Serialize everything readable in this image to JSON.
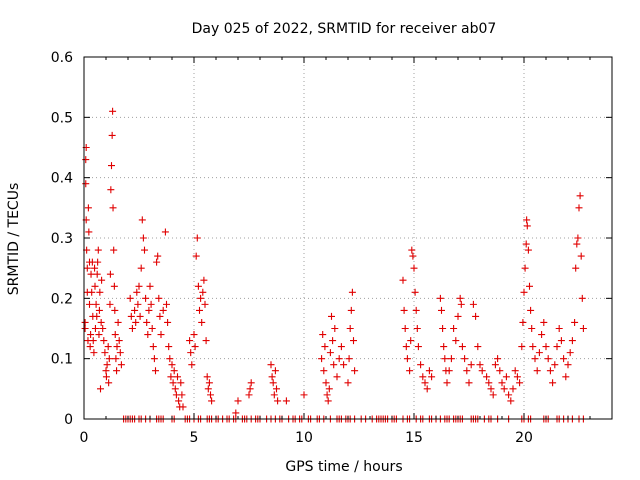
{
  "chart_data": {
    "type": "scatter",
    "title": "Day 025 of 2022, SRMTID for receiver ab07",
    "xlabel": "GPS time / hours",
    "ylabel": "SRMTID / TECUs",
    "xlim": [
      0,
      24
    ],
    "ylim": [
      0,
      0.6
    ],
    "xticks": [
      0,
      5,
      10,
      15,
      20
    ],
    "xtick_labels": [
      "0",
      "5",
      "10",
      "15",
      "20"
    ],
    "yticks": [
      0,
      0.1,
      0.2,
      0.3,
      0.4,
      0.5,
      0.6
    ],
    "ytick_labels": [
      "0",
      "0.1",
      "0.2",
      "0.3",
      "0.4",
      "0.5",
      "0.6"
    ],
    "grid": true,
    "marker": "+",
    "series": [
      {
        "name": "SRMTID",
        "color": "#e00000",
        "points": [
          [
            0.05,
            0.16
          ],
          [
            0.05,
            0.15
          ],
          [
            0.08,
            0.39
          ],
          [
            0.08,
            0.43
          ],
          [
            0.1,
            0.45
          ],
          [
            0.1,
            0.33
          ],
          [
            0.12,
            0.28
          ],
          [
            0.15,
            0.21
          ],
          [
            0.15,
            0.25
          ],
          [
            0.18,
            0.13
          ],
          [
            0.2,
            0.35
          ],
          [
            0.22,
            0.31
          ],
          [
            0.25,
            0.26
          ],
          [
            0.25,
            0.19
          ],
          [
            0.28,
            0.12
          ],
          [
            0.3,
            0.14
          ],
          [
            0.32,
            0.24
          ],
          [
            0.35,
            0.21
          ],
          [
            0.38,
            0.26
          ],
          [
            0.4,
            0.17
          ],
          [
            0.42,
            0.13
          ],
          [
            0.45,
            0.11
          ],
          [
            0.48,
            0.25
          ],
          [
            0.5,
            0.22
          ],
          [
            0.52,
            0.15
          ],
          [
            0.55,
            0.19
          ],
          [
            0.58,
            0.17
          ],
          [
            0.6,
            0.24
          ],
          [
            0.62,
            0.26
          ],
          [
            0.65,
            0.28
          ],
          [
            0.68,
            0.14
          ],
          [
            0.7,
            0.18
          ],
          [
            0.72,
            0.21
          ],
          [
            0.75,
            0.05
          ],
          [
            0.78,
            0.16
          ],
          [
            0.8,
            0.23
          ],
          [
            0.85,
            0.15
          ],
          [
            0.9,
            0.13
          ],
          [
            0.95,
            0.11
          ],
          [
            1.0,
            0.08
          ],
          [
            1.02,
            0.07
          ],
          [
            1.05,
            0.09
          ],
          [
            1.1,
            0.12
          ],
          [
            1.12,
            0.06
          ],
          [
            1.15,
            0.1
          ],
          [
            1.18,
            0.19
          ],
          [
            1.2,
            0.24
          ],
          [
            1.22,
            0.38
          ],
          [
            1.25,
            0.42
          ],
          [
            1.28,
            0.47
          ],
          [
            1.3,
            0.51
          ],
          [
            1.32,
            0.35
          ],
          [
            1.35,
            0.28
          ],
          [
            1.38,
            0.22
          ],
          [
            1.4,
            0.18
          ],
          [
            1.42,
            0.14
          ],
          [
            1.45,
            0.1
          ],
          [
            1.48,
            0.08
          ],
          [
            1.5,
            0.12
          ],
          [
            1.55,
            0.16
          ],
          [
            1.6,
            0.13
          ],
          [
            1.65,
            0.11
          ],
          [
            1.7,
            0.09
          ],
          [
            2.1,
            0.2
          ],
          [
            2.15,
            0.17
          ],
          [
            2.2,
            0.15
          ],
          [
            2.3,
            0.18
          ],
          [
            2.35,
            0.16
          ],
          [
            2.4,
            0.21
          ],
          [
            2.45,
            0.19
          ],
          [
            2.5,
            0.22
          ],
          [
            2.55,
            0.17
          ],
          [
            2.6,
            0.25
          ],
          [
            2.65,
            0.33
          ],
          [
            2.7,
            0.3
          ],
          [
            2.75,
            0.28
          ],
          [
            2.8,
            0.2
          ],
          [
            2.85,
            0.16
          ],
          [
            2.9,
            0.14
          ],
          [
            2.95,
            0.18
          ],
          [
            3.0,
            0.22
          ],
          [
            3.05,
            0.19
          ],
          [
            3.1,
            0.15
          ],
          [
            3.15,
            0.12
          ],
          [
            3.2,
            0.1
          ],
          [
            3.25,
            0.08
          ],
          [
            3.3,
            0.26
          ],
          [
            3.35,
            0.27
          ],
          [
            3.4,
            0.2
          ],
          [
            3.45,
            0.17
          ],
          [
            3.5,
            0.14
          ],
          [
            3.6,
            0.18
          ],
          [
            3.7,
            0.31
          ],
          [
            3.75,
            0.19
          ],
          [
            3.8,
            0.16
          ],
          [
            3.85,
            0.12
          ],
          [
            3.9,
            0.1
          ],
          [
            3.95,
            0.07
          ],
          [
            4.0,
            0.09
          ],
          [
            4.05,
            0.06
          ],
          [
            4.1,
            0.08
          ],
          [
            4.15,
            0.05
          ],
          [
            4.2,
            0.04
          ],
          [
            4.25,
            0.07
          ],
          [
            4.3,
            0.03
          ],
          [
            4.35,
            0.02
          ],
          [
            4.4,
            0.06
          ],
          [
            4.45,
            0.04
          ],
          [
            4.5,
            0.02
          ],
          [
            4.8,
            0.13
          ],
          [
            4.85,
            0.11
          ],
          [
            4.9,
            0.09
          ],
          [
            5.0,
            0.14
          ],
          [
            5.05,
            0.12
          ],
          [
            5.1,
            0.27
          ],
          [
            5.15,
            0.3
          ],
          [
            5.2,
            0.22
          ],
          [
            5.25,
            0.18
          ],
          [
            5.3,
            0.2
          ],
          [
            5.35,
            0.16
          ],
          [
            5.4,
            0.21
          ],
          [
            5.45,
            0.23
          ],
          [
            5.5,
            0.19
          ],
          [
            5.55,
            0.13
          ],
          [
            5.6,
            0.07
          ],
          [
            5.65,
            0.05
          ],
          [
            5.7,
            0.06
          ],
          [
            5.75,
            0.04
          ],
          [
            5.8,
            0.03
          ],
          [
            6.9,
            0.01
          ],
          [
            7.0,
            0.03
          ],
          [
            7.5,
            0.04
          ],
          [
            7.55,
            0.05
          ],
          [
            7.6,
            0.06
          ],
          [
            8.5,
            0.09
          ],
          [
            8.55,
            0.07
          ],
          [
            8.6,
            0.06
          ],
          [
            8.65,
            0.04
          ],
          [
            8.7,
            0.08
          ],
          [
            8.75,
            0.05
          ],
          [
            8.8,
            0.03
          ],
          [
            9.2,
            0.03
          ],
          [
            10.0,
            0.04
          ],
          [
            10.8,
            0.1
          ],
          [
            10.85,
            0.14
          ],
          [
            10.9,
            0.08
          ],
          [
            10.95,
            0.12
          ],
          [
            11.0,
            0.06
          ],
          [
            11.05,
            0.04
          ],
          [
            11.1,
            0.03
          ],
          [
            11.15,
            0.05
          ],
          [
            11.2,
            0.11
          ],
          [
            11.25,
            0.17
          ],
          [
            11.3,
            0.13
          ],
          [
            11.35,
            0.09
          ],
          [
            11.4,
            0.15
          ],
          [
            11.5,
            0.07
          ],
          [
            11.6,
            0.1
          ],
          [
            11.7,
            0.12
          ],
          [
            11.8,
            0.09
          ],
          [
            12.0,
            0.06
          ],
          [
            12.05,
            0.1
          ],
          [
            12.1,
            0.15
          ],
          [
            12.15,
            0.18
          ],
          [
            12.2,
            0.21
          ],
          [
            12.25,
            0.13
          ],
          [
            12.3,
            0.08
          ],
          [
            14.5,
            0.23
          ],
          [
            14.55,
            0.18
          ],
          [
            14.6,
            0.15
          ],
          [
            14.65,
            0.12
          ],
          [
            14.7,
            0.1
          ],
          [
            14.8,
            0.08
          ],
          [
            14.85,
            0.13
          ],
          [
            14.9,
            0.28
          ],
          [
            14.95,
            0.27
          ],
          [
            15.0,
            0.25
          ],
          [
            15.05,
            0.21
          ],
          [
            15.1,
            0.18
          ],
          [
            15.15,
            0.15
          ],
          [
            15.2,
            0.12
          ],
          [
            15.3,
            0.09
          ],
          [
            15.4,
            0.07
          ],
          [
            15.5,
            0.06
          ],
          [
            15.6,
            0.05
          ],
          [
            15.7,
            0.08
          ],
          [
            15.8,
            0.07
          ],
          [
            16.2,
            0.2
          ],
          [
            16.25,
            0.18
          ],
          [
            16.3,
            0.15
          ],
          [
            16.35,
            0.12
          ],
          [
            16.4,
            0.1
          ],
          [
            16.45,
            0.08
          ],
          [
            16.5,
            0.06
          ],
          [
            16.6,
            0.08
          ],
          [
            16.7,
            0.1
          ],
          [
            16.8,
            0.15
          ],
          [
            16.9,
            0.13
          ],
          [
            17.0,
            0.17
          ],
          [
            17.1,
            0.2
          ],
          [
            17.15,
            0.19
          ],
          [
            17.2,
            0.12
          ],
          [
            17.3,
            0.1
          ],
          [
            17.4,
            0.08
          ],
          [
            17.5,
            0.06
          ],
          [
            17.6,
            0.09
          ],
          [
            17.7,
            0.19
          ],
          [
            17.8,
            0.17
          ],
          [
            17.9,
            0.12
          ],
          [
            18.0,
            0.09
          ],
          [
            18.1,
            0.08
          ],
          [
            18.3,
            0.07
          ],
          [
            18.4,
            0.06
          ],
          [
            18.5,
            0.05
          ],
          [
            18.6,
            0.04
          ],
          [
            18.7,
            0.09
          ],
          [
            18.8,
            0.1
          ],
          [
            18.9,
            0.08
          ],
          [
            19.0,
            0.06
          ],
          [
            19.1,
            0.05
          ],
          [
            19.2,
            0.07
          ],
          [
            19.3,
            0.04
          ],
          [
            19.4,
            0.03
          ],
          [
            19.5,
            0.05
          ],
          [
            19.6,
            0.08
          ],
          [
            19.7,
            0.07
          ],
          [
            19.8,
            0.06
          ],
          [
            19.9,
            0.12
          ],
          [
            19.95,
            0.16
          ],
          [
            20.0,
            0.21
          ],
          [
            20.05,
            0.25
          ],
          [
            20.1,
            0.29
          ],
          [
            20.12,
            0.33
          ],
          [
            20.15,
            0.32
          ],
          [
            20.2,
            0.28
          ],
          [
            20.25,
            0.22
          ],
          [
            20.3,
            0.18
          ],
          [
            20.35,
            0.15
          ],
          [
            20.4,
            0.12
          ],
          [
            20.5,
            0.1
          ],
          [
            20.6,
            0.08
          ],
          [
            20.7,
            0.11
          ],
          [
            20.8,
            0.14
          ],
          [
            20.9,
            0.16
          ],
          [
            21.0,
            0.12
          ],
          [
            21.1,
            0.1
          ],
          [
            21.2,
            0.08
          ],
          [
            21.3,
            0.06
          ],
          [
            21.4,
            0.09
          ],
          [
            21.5,
            0.12
          ],
          [
            21.6,
            0.15
          ],
          [
            21.7,
            0.13
          ],
          [
            21.8,
            0.1
          ],
          [
            21.9,
            0.07
          ],
          [
            22.0,
            0.09
          ],
          [
            22.1,
            0.11
          ],
          [
            22.2,
            0.13
          ],
          [
            22.3,
            0.16
          ],
          [
            22.35,
            0.25
          ],
          [
            22.4,
            0.29
          ],
          [
            22.45,
            0.3
          ],
          [
            22.5,
            0.35
          ],
          [
            22.55,
            0.37
          ],
          [
            22.6,
            0.27
          ],
          [
            22.65,
            0.2
          ],
          [
            22.7,
            0.15
          ]
        ],
        "zero_points": [
          1.8,
          1.9,
          2.0,
          2.1,
          2.2,
          2.3,
          2.5,
          2.6,
          2.8,
          3.0,
          3.3,
          3.4,
          3.5,
          3.6,
          4.0,
          4.1,
          4.6,
          4.7,
          4.8,
          5.0,
          5.2,
          5.3,
          5.6,
          5.7,
          5.8,
          6.0,
          6.1,
          6.3,
          6.5,
          6.6,
          6.8,
          6.9,
          7.2,
          7.3,
          7.4,
          7.6,
          7.8,
          7.9,
          8.0,
          8.3,
          8.5,
          8.7,
          8.9,
          9.0,
          9.3,
          9.5,
          9.6,
          9.8,
          9.9,
          10.2,
          10.3,
          10.6,
          10.7,
          10.9,
          11.2,
          11.5,
          11.6,
          11.7,
          11.9,
          12.0,
          12.1,
          12.3,
          12.6,
          12.8,
          13.1,
          13.3,
          13.4,
          13.5,
          13.6,
          13.7,
          13.8,
          14.0,
          14.1,
          14.2,
          14.5,
          14.7,
          14.8,
          15.1,
          15.3,
          15.4,
          15.7,
          15.8,
          16.0,
          16.2,
          16.4,
          16.5,
          16.6,
          16.8,
          16.9,
          17.0,
          17.1,
          17.2,
          17.6,
          17.7,
          17.8,
          17.9,
          18.2,
          18.4,
          18.5,
          18.8,
          19.3,
          19.9,
          20.0,
          20.2,
          20.3,
          20.9,
          21.0,
          21.1,
          21.5,
          21.6,
          21.8,
          22.0,
          22.2,
          22.5,
          22.7
        ]
      }
    ]
  }
}
